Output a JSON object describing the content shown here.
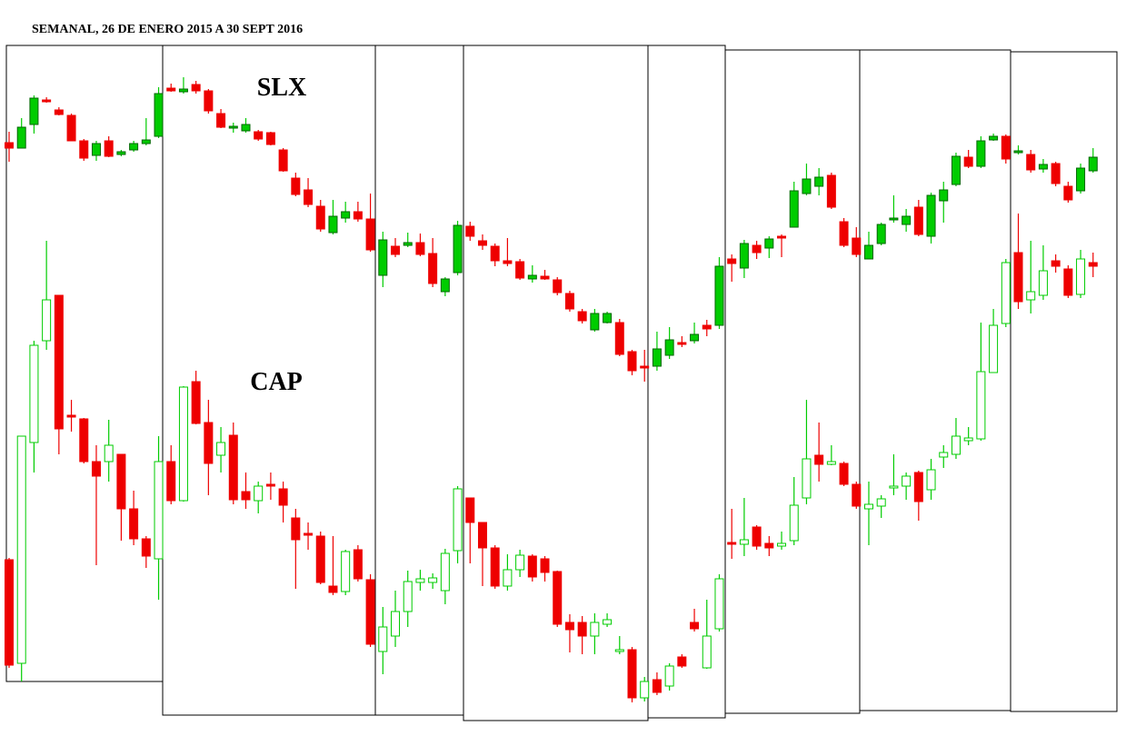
{
  "chart_data": {
    "type": "candlestick",
    "title": "SEMANAL, 26 DE ENERO 2015 A 30 SEPT 2016",
    "ylim": [
      -10,
      800
    ],
    "up_color": "#00cc00",
    "down_color": "#ee0000",
    "series": [
      {
        "name": "SLX",
        "hollow_up": false,
        "open": [
          643,
          637,
          663,
          690,
          679,
          673,
          645,
          629,
          645,
          630,
          635,
          642,
          650,
          703,
          699,
          707,
          700,
          675,
          659,
          656,
          655,
          654,
          635,
          604,
          591,
          573,
          544,
          560,
          567,
          559,
          497,
          529,
          530,
          533,
          521,
          479,
          500,
          551,
          535,
          529,
          513,
          512,
          493,
          496,
          492,
          477,
          457,
          437,
          445,
          445,
          413,
          397,
          397,
          409,
          423,
          425,
          442,
          442,
          515,
          505,
          530,
          527,
          540,
          550,
          587,
          595,
          607,
          556,
          538,
          515,
          532,
          558,
          553,
          572,
          540,
          579,
          597,
          627,
          617,
          646,
          650,
          632,
          630,
          614,
          620,
          595,
          590,
          612
        ],
        "high": [
          655,
          670,
          695,
          693,
          682,
          675,
          647,
          645,
          650,
          635,
          645,
          670,
          704,
          708,
          715,
          711,
          702,
          680,
          665,
          670,
          657,
          655,
          637,
          610,
          604,
          580,
          580,
          578,
          578,
          587,
          545,
          538,
          544,
          543,
          538,
          495,
          557,
          556,
          542,
          532,
          538,
          515,
          508,
          503,
          495,
          480,
          460,
          460,
          457,
          449,
          415,
          415,
          435,
          440,
          430,
          445,
          448,
          517,
          520,
          536,
          535,
          540,
          542,
          600,
          620,
          615,
          610,
          560,
          550,
          545,
          555,
          585,
          570,
          580,
          588,
          600,
          632,
          635,
          650,
          653,
          652,
          640,
          635,
          625,
          622,
          600,
          620,
          637
        ],
        "low": [
          622,
          637,
          653,
          687,
          673,
          645,
          623,
          623,
          627,
          628,
          633,
          640,
          648,
          699,
          697,
          697,
          675,
          659,
          654,
          654,
          645,
          640,
          611,
          584,
          572,
          545,
          542,
          555,
          556,
          523,
          484,
          517,
          528,
          518,
          484,
          474,
          497,
          535,
          525,
          507,
          507,
          492,
          489,
          492,
          475,
          457,
          444,
          435,
          444,
          408,
          387,
          380,
          392,
          405,
          418,
          422,
          430,
          438,
          490,
          494,
          515,
          516,
          517,
          550,
          585,
          585,
          570,
          528,
          517,
          515,
          530,
          555,
          545,
          540,
          532,
          555,
          595,
          615,
          615,
          645,
          620,
          630,
          610,
          610,
          595,
          577,
          587,
          610
        ],
        "close": [
          637,
          660,
          692,
          688,
          674,
          645,
          626,
          642,
          628,
          633,
          642,
          646,
          697,
          700,
          702,
          700,
          678,
          660,
          661,
          663,
          647,
          641,
          612,
          586,
          575,
          548,
          562,
          567,
          559,
          525,
          536,
          520,
          533,
          520,
          488,
          493,
          552,
          540,
          530,
          513,
          510,
          494,
          497,
          493,
          478,
          460,
          447,
          455,
          455,
          410,
          392,
          395,
          416,
          426,
          421,
          432,
          438,
          507,
          510,
          532,
          522,
          537,
          538,
          590,
          603,
          605,
          572,
          530,
          520,
          530,
          553,
          560,
          562,
          542,
          585,
          591,
          628,
          617,
          645,
          650,
          625,
          634,
          613,
          619,
          598,
          580,
          615,
          627
        ]
      },
      {
        "name": "CAP",
        "hollow_up": true,
        "open": [
          184,
          70,
          313,
          425,
          475,
          343,
          339,
          292,
          292,
          300,
          240,
          207,
          185,
          292,
          249,
          380,
          335,
          299,
          321,
          259,
          249,
          267,
          262,
          230,
          213,
          210,
          155,
          149,
          195,
          162,
          83,
          100,
          127,
          159,
          159,
          150,
          194,
          252,
          225,
          197,
          155,
          173,
          188,
          185,
          171,
          115,
          115,
          100,
          113,
          83,
          85,
          32,
          52,
          45,
          77,
          115,
          65,
          108,
          203,
          201,
          220,
          202,
          199,
          205,
          252,
          299,
          289,
          290,
          267,
          240,
          243,
          263,
          265,
          280,
          261,
          297,
          300,
          315,
          317,
          390,
          444,
          522,
          470,
          475,
          513,
          504,
          476,
          511
        ],
        "high": [
          186,
          320,
          425,
          535,
          475,
          360,
          340,
          310,
          338,
          300,
          260,
          210,
          320,
          310,
          375,
          392,
          360,
          330,
          335,
          280,
          270,
          280,
          270,
          240,
          225,
          215,
          210,
          195,
          200,
          168,
          132,
          150,
          172,
          173,
          169,
          196,
          265,
          252,
          225,
          200,
          190,
          195,
          190,
          188,
          172,
          124,
          122,
          125,
          125,
          100,
          88,
          55,
          60,
          70,
          80,
          130,
          140,
          168,
          240,
          252,
          222,
          210,
          215,
          275,
          360,
          335,
          310,
          292,
          270,
          270,
          255,
          300,
          280,
          282,
          295,
          310,
          340,
          330,
          445,
          460,
          515,
          565,
          535,
          530,
          520,
          508,
          525,
          522
        ],
        "low": [
          65,
          50,
          280,
          415,
          300,
          325,
          290,
          178,
          270,
          205,
          200,
          175,
          140,
          245,
          248,
          333,
          255,
          280,
          245,
          240,
          235,
          250,
          225,
          152,
          195,
          157,
          145,
          145,
          160,
          88,
          58,
          88,
          110,
          150,
          152,
          135,
          180,
          180,
          155,
          152,
          150,
          165,
          160,
          160,
          110,
          82,
          80,
          80,
          110,
          80,
          27,
          28,
          35,
          40,
          65,
          105,
          64,
          105,
          185,
          188,
          195,
          188,
          195,
          200,
          245,
          270,
          288,
          265,
          240,
          200,
          230,
          255,
          250,
          227,
          250,
          285,
          295,
          310,
          315,
          390,
          440,
          460,
          455,
          470,
          500,
          472,
          472,
          495
        ],
        "close": [
          68,
          320,
          420,
          470,
          328,
          341,
          292,
          276,
          310,
          240,
          207,
          188,
          292,
          249,
          374,
          334,
          290,
          313,
          250,
          250,
          265,
          265,
          244,
          206,
          211,
          159,
          148,
          193,
          163,
          91,
          110,
          127,
          160,
          163,
          164,
          191,
          262,
          225,
          197,
          155,
          173,
          189,
          165,
          170,
          113,
          107,
          100,
          115,
          118,
          85,
          32,
          50,
          38,
          67,
          67,
          108,
          100,
          163,
          201,
          206,
          199,
          197,
          202,
          244,
          295,
          289,
          292,
          267,
          243,
          245,
          251,
          265,
          276,
          248,
          283,
          302,
          320,
          318,
          391,
          442,
          511,
          468,
          479,
          502,
          507,
          475,
          515,
          507
        ]
      }
    ]
  }
}
